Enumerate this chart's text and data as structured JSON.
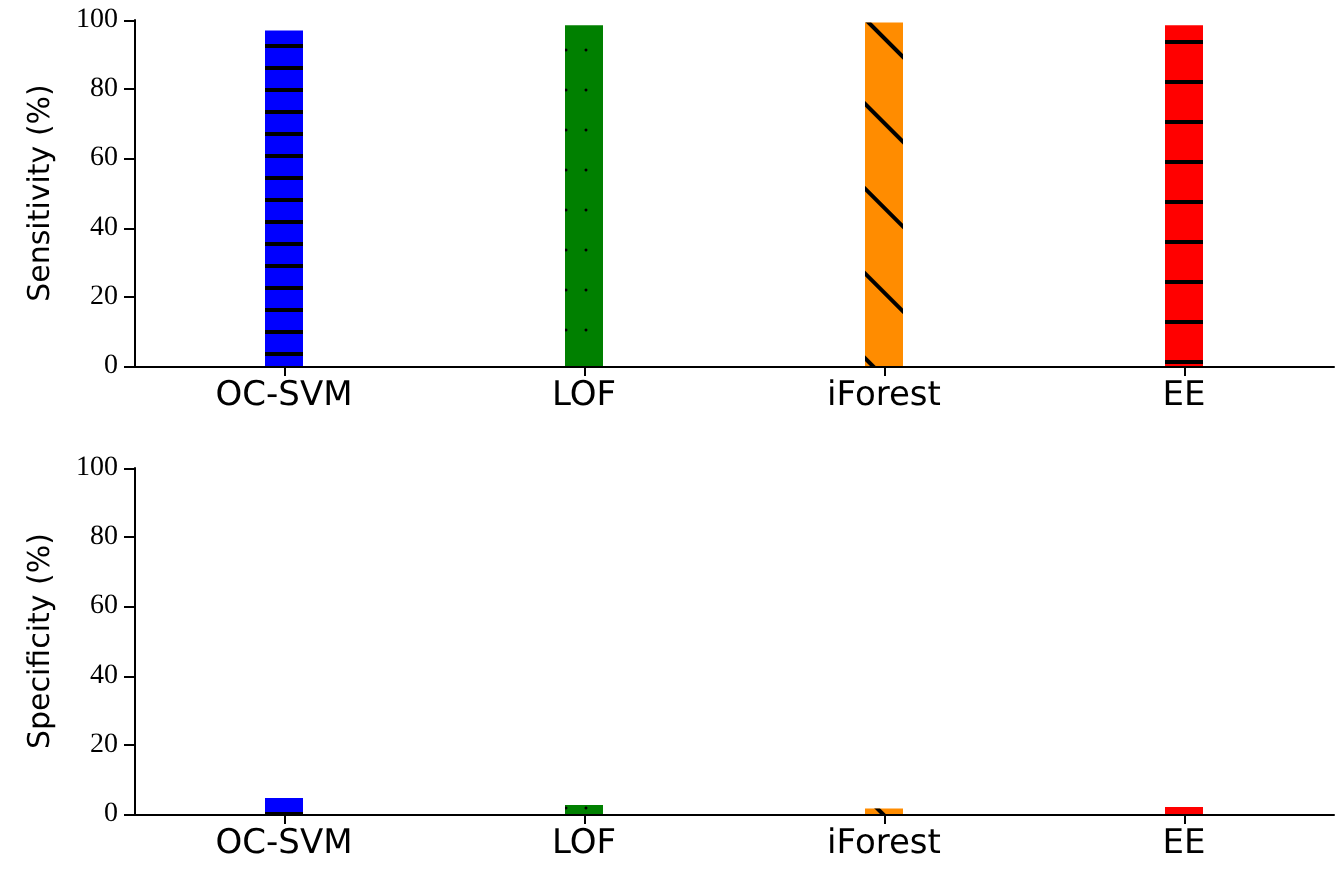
{
  "chart_data": [
    {
      "type": "bar",
      "ylabel": "Sensitivity (%)",
      "categories": [
        "OC-SVM",
        "LOF",
        "iForest",
        "EE"
      ],
      "values": [
        97,
        98.5,
        99.3,
        98.5
      ],
      "colors": [
        "#0000ff",
        "#008000",
        "#ff8c00",
        "#ff0000"
      ],
      "ylim": [
        0,
        100
      ],
      "yticks": [
        0,
        20,
        40,
        60,
        80,
        100
      ],
      "grid": false
    },
    {
      "type": "bar",
      "ylabel": "Specificity (%)",
      "categories": [
        "OC-SVM",
        "LOF",
        "iForest",
        "EE"
      ],
      "values": [
        4.6,
        2.6,
        1.6,
        2.0
      ],
      "colors": [
        "#0000ff",
        "#008000",
        "#ff8c00",
        "#ff0000"
      ],
      "ylim": [
        0,
        100
      ],
      "yticks": [
        0,
        20,
        40,
        60,
        80,
        100
      ],
      "grid": false
    }
  ]
}
